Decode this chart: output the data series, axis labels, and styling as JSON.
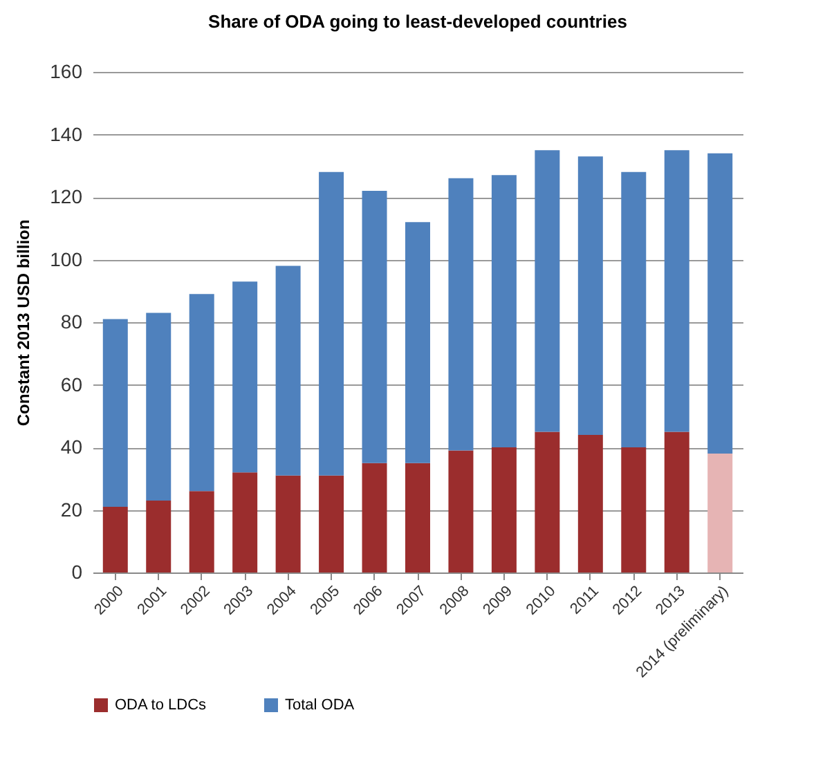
{
  "chart_data": {
    "type": "bar",
    "title": "Share of ODA going to least-developed countries",
    "ylabel": "Constant 2013  USD billion",
    "categories": [
      "2000",
      "2001",
      "2002",
      "2003",
      "2004",
      "2005",
      "2006",
      "2007",
      "2008",
      "2009",
      "2010",
      "2011",
      "2012",
      "2013",
      "2014 (preliminary)"
    ],
    "stacked": true,
    "series": [
      {
        "name": "ODA to LDCs",
        "color": "#9b2d2d",
        "colors": [
          "#9b2d2d",
          "#9b2d2d",
          "#9b2d2d",
          "#9b2d2d",
          "#9b2d2d",
          "#9b2d2d",
          "#9b2d2d",
          "#9b2d2d",
          "#9b2d2d",
          "#9b2d2d",
          "#9b2d2d",
          "#9b2d2d",
          "#9b2d2d",
          "#9b2d2d",
          "#e6b4b4"
        ],
        "values": [
          21,
          23,
          26,
          32,
          31,
          31,
          35,
          35,
          39,
          40,
          45,
          44,
          40,
          45,
          38
        ]
      },
      {
        "name": "Total ODA",
        "color": "#4f81bd",
        "values": [
          60,
          60,
          63,
          61,
          67,
          97,
          87,
          77,
          87,
          87,
          90,
          89,
          88,
          90,
          96
        ]
      }
    ],
    "ylim": [
      0,
      160
    ],
    "yticks": [
      0,
      20,
      40,
      60,
      80,
      100,
      120,
      140,
      160
    ],
    "grid": "y",
    "legend": "bottom"
  }
}
